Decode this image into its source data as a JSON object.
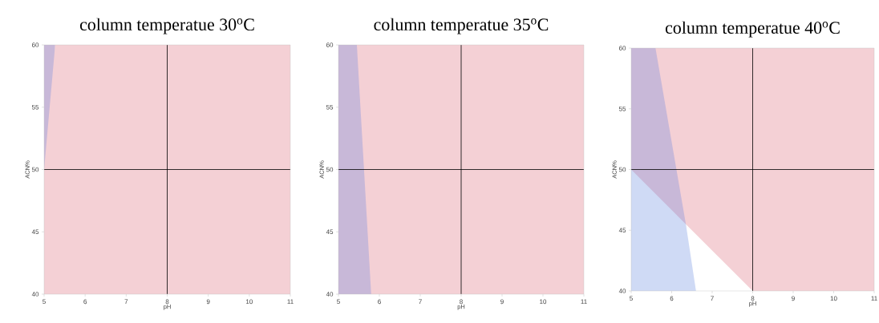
{
  "chart_data": [
    {
      "type": "area",
      "title": "column temperatue 30$^{o}$C",
      "xlabel": "pH",
      "ylabel": "ACN%",
      "xlim": [
        5,
        11
      ],
      "ylim": [
        40,
        60
      ],
      "xticks": [
        5,
        6,
        7,
        8,
        9,
        10,
        11
      ],
      "yticks": [
        40,
        45,
        50,
        55,
        60
      ],
      "series": [
        {
          "color": "#c8b8d8",
          "x": [
            5,
            5.27
          ],
          "values": [
            60,
            60
          ]
        },
        {
          "color": "#f4d0d5",
          "x": [
            5,
            5.27,
            11
          ],
          "values": [
            50,
            60,
            60
          ]
        }
      ],
      "ref_lines": [
        {
          "axis": "x",
          "value": 8,
          "color": "#000000"
        },
        {
          "axis": "y",
          "value": 50,
          "color": "#000000"
        }
      ]
    },
    {
      "type": "area",
      "title": "column temperatue 35$^{o}$C",
      "xlabel": "pH",
      "ylabel": "ACN%",
      "xlim": [
        5,
        11
      ],
      "ylim": [
        40,
        60
      ],
      "xticks": [
        5,
        6,
        7,
        8,
        9,
        10,
        11
      ],
      "yticks": [
        40,
        45,
        50,
        55,
        60
      ],
      "series": [
        {
          "color": "#f4d0d5",
          "x": [
            5,
            11
          ],
          "values": [
            60,
            60
          ]
        },
        {
          "color": "#c8b8d8",
          "x": [
            5,
            5.45,
            5.8
          ],
          "values": [
            60,
            60,
            40
          ]
        }
      ],
      "ref_lines": [
        {
          "axis": "x",
          "value": 8,
          "color": "#000000"
        },
        {
          "axis": "y",
          "value": 50,
          "color": "#000000"
        }
      ]
    },
    {
      "type": "area",
      "title": "column temperatue 40$^{o}$C",
      "xlabel": "pH",
      "ylabel": "ACN%",
      "xlim": [
        5,
        11
      ],
      "ylim": [
        40,
        60
      ],
      "xticks": [
        5,
        6,
        7,
        8,
        9,
        10,
        11
      ],
      "yticks": [
        40,
        45,
        50,
        55,
        60
      ],
      "series": [
        {
          "color": "#f4d0d5",
          "x": [
            5,
            11
          ],
          "values": [
            60,
            60
          ]
        },
        {
          "color": "#c8b8d8",
          "x": [
            5,
            5.6,
            6.35
          ],
          "values": [
            60,
            60,
            45.5
          ]
        },
        {
          "color": "#ffffff",
          "x": [
            6.35,
            8
          ],
          "values": [
            45.5,
            40
          ]
        },
        {
          "color": "#cfdaf5",
          "x": [
            5,
            6.35,
            6.6
          ],
          "values": [
            50,
            45.5,
            40
          ]
        }
      ],
      "ref_lines": [
        {
          "axis": "x",
          "value": 8,
          "color": "#000000"
        },
        {
          "axis": "y",
          "value": 50,
          "color": "#000000"
        }
      ]
    }
  ]
}
